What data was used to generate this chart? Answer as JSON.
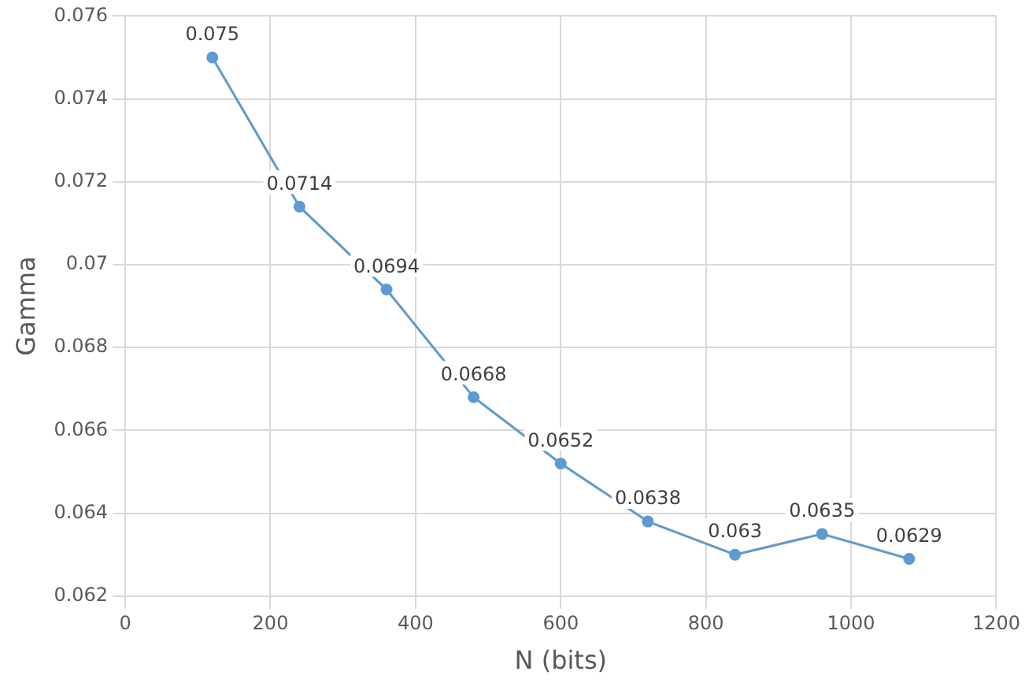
{
  "chart_data": {
    "type": "line",
    "xlabel": "N (bits)",
    "ylabel": "Gamma",
    "x": [
      120,
      240,
      360,
      480,
      600,
      720,
      840,
      960,
      1080
    ],
    "series": [
      {
        "color": "#5b9bd5",
        "values": [
          0.075,
          0.0714,
          0.0694,
          0.0668,
          0.0652,
          0.0638,
          0.063,
          0.0635,
          0.0629
        ]
      }
    ],
    "xlim": [
      0,
      1200
    ],
    "xticks": [
      0,
      200,
      400,
      600,
      800,
      1000,
      1200
    ],
    "ylim": [
      0.062,
      0.076
    ],
    "yticks": [
      0.062,
      0.064,
      0.066,
      0.068,
      0.07,
      0.072,
      0.074,
      0.076
    ],
    "grid": true,
    "marker": "circle",
    "line_style": "solid",
    "data_labels": true,
    "legend": false
  }
}
